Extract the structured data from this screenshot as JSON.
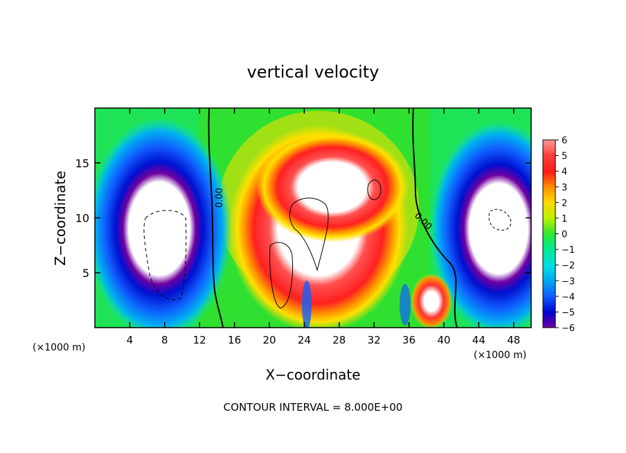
{
  "chart_data": {
    "type": "heatmap",
    "title": "vertical velocity",
    "xlabel": "X−coordinate",
    "ylabel": "Z−coordinate",
    "x_unit_left": "(×1000 m)",
    "x_unit_right": "(×1000 m)",
    "footer": "CONTOUR INTERVAL = 8.000E+00",
    "xlim": [
      0,
      50
    ],
    "ylim": [
      0,
      20
    ],
    "x_ticks": [
      4,
      8,
      12,
      16,
      20,
      24,
      28,
      32,
      36,
      40,
      44,
      48
    ],
    "y_ticks": [
      5,
      10,
      15
    ],
    "colorbar": {
      "ticks": [
        6,
        5,
        4,
        3,
        2,
        1,
        0,
        -1,
        -2,
        -3,
        -4,
        -5,
        -6
      ],
      "tick_labels": [
        "6",
        "5",
        "4",
        "3",
        "2",
        "1",
        "0",
        "−1",
        "−2",
        "−3",
        "−4",
        "−5",
        "−6"
      ],
      "range": [
        -6,
        6
      ]
    },
    "contour_labels": [
      {
        "text": "0.00",
        "x": 14,
        "y": 12.3,
        "rotate": -90
      },
      {
        "text": "0.00",
        "x": 37.2,
        "y": 9.9,
        "rotate": 45
      }
    ],
    "field_features": [
      {
        "kind": "updraft",
        "x": 24,
        "y": 9,
        "value": 6
      },
      {
        "kind": "downdraft",
        "x": 7.5,
        "y": 9,
        "value": -6
      },
      {
        "kind": "downdraft",
        "x": 46,
        "y": 9,
        "value": -6
      }
    ]
  }
}
